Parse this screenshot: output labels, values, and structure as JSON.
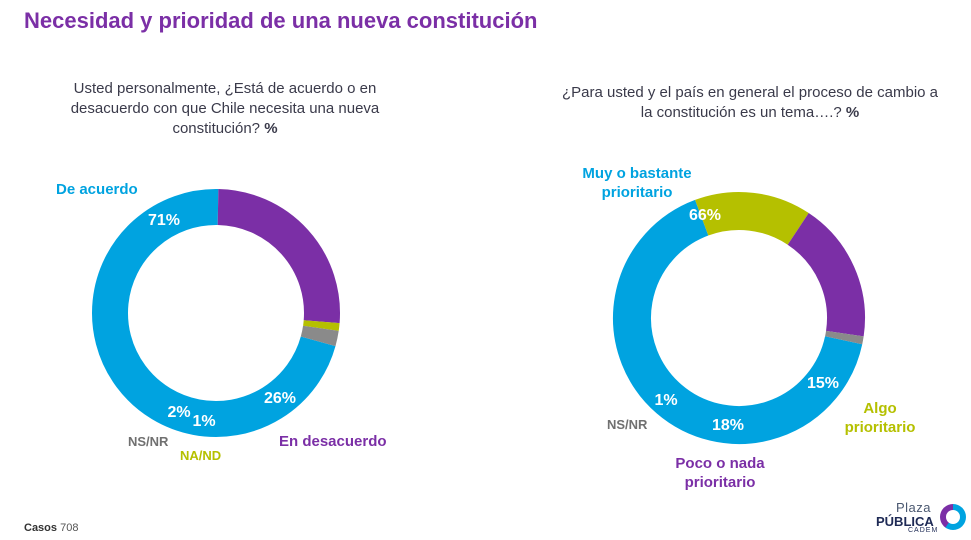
{
  "page": {
    "title": "Necesidad y prioridad de una nueva constitución",
    "footer_label": "Casos",
    "footer_value": "708",
    "logo": {
      "line1": "Plaza",
      "line2": "PÚBLICA",
      "line3": "CADEM"
    }
  },
  "colors": {
    "blue": "#00a3e0",
    "purple": "#7b2fa6",
    "olive": "#b5c000",
    "gray": "#8a8a8a"
  },
  "chart_data": [
    {
      "type": "pie",
      "donut": true,
      "question": "Usted personalmente, ¿Está de acuerdo o en desacuerdo con que Chile necesita una nueva constitución?",
      "question_unit": "%",
      "slices": [
        {
          "label": "De acuerdo",
          "value": 71,
          "pct_label": "71%",
          "color": "#00a3e0"
        },
        {
          "label": "En desacuerdo",
          "value": 26,
          "pct_label": "26%",
          "color": "#7b2fa6"
        },
        {
          "label": "NA/ND",
          "value": 1,
          "pct_label": "1%",
          "color": "#b5c000"
        },
        {
          "label": "NS/NR",
          "value": 2,
          "pct_label": "2%",
          "color": "#8a8a8a"
        }
      ]
    },
    {
      "type": "pie",
      "donut": true,
      "question": "¿Para usted y el país en general el proceso de cambio a la constitución es un tema….?",
      "question_unit": "%",
      "slices": [
        {
          "label": "Muy o bastante prioritario",
          "value": 66,
          "pct_label": "66%",
          "color": "#00a3e0"
        },
        {
          "label": "Algo prioritario",
          "value": 15,
          "pct_label": "15%",
          "color": "#b5c000"
        },
        {
          "label": "Poco o nada prioritario",
          "value": 18,
          "pct_label": "18%",
          "color": "#7b2fa6"
        },
        {
          "label": "NS/NR",
          "value": 1,
          "pct_label": "1%",
          "color": "#8a8a8a"
        }
      ]
    }
  ]
}
